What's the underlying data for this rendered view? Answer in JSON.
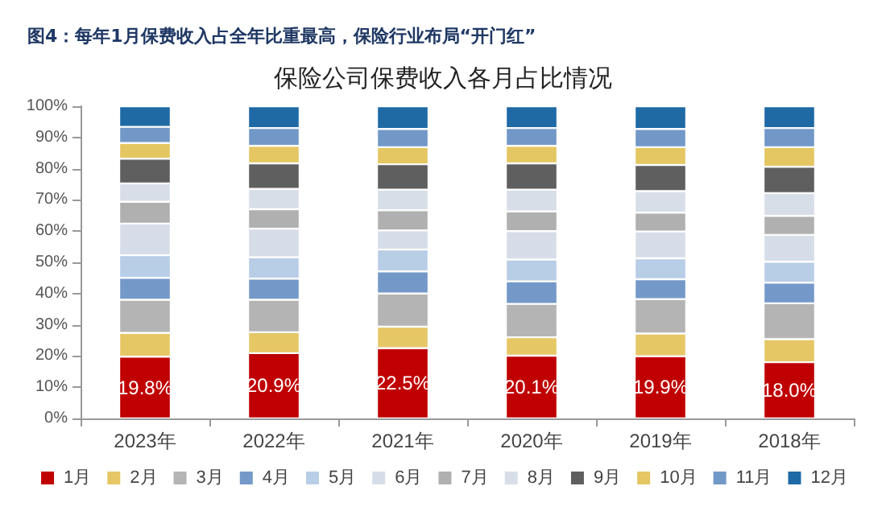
{
  "chart_data": {
    "type": "bar",
    "title": "图4：每年1月保费收入占全年比重最高，保险行业布局“开门红”",
    "subtitle": "保险公司保费收入各月占比情况",
    "categories": [
      "2023年",
      "2022年",
      "2021年",
      "2020年",
      "2019年",
      "2018年"
    ],
    "stacked": true,
    "ylim": [
      0,
      100
    ],
    "yticks": [
      {
        "value": 0,
        "label": "0%"
      },
      {
        "value": 10,
        "label": "10%"
      },
      {
        "value": 20,
        "label": "20%"
      },
      {
        "value": 30,
        "label": "30%"
      },
      {
        "value": 40,
        "label": "40%"
      },
      {
        "value": 50,
        "label": "50%"
      },
      {
        "value": 60,
        "label": "60%"
      },
      {
        "value": 70,
        "label": "70%"
      },
      {
        "value": 80,
        "label": "80%"
      },
      {
        "value": 90,
        "label": "90%"
      },
      {
        "value": 100,
        "label": "100%"
      }
    ],
    "grid": false,
    "legend": "bottom",
    "series": [
      {
        "name": "1月",
        "color": "#c00000",
        "values": [
          19.8,
          20.9,
          22.5,
          20.1,
          19.9,
          18.0
        ],
        "value_labels": [
          "19.8%",
          "20.9%",
          "22.5%",
          "20.1%",
          "19.9%",
          "18.0%"
        ]
      },
      {
        "name": "2月",
        "color": "#e6c766",
        "values": [
          7.6,
          6.7,
          6.9,
          5.9,
          7.3,
          7.4
        ]
      },
      {
        "name": "3月",
        "color": "#b4b4b4",
        "values": [
          10.6,
          10.4,
          10.6,
          10.7,
          11.0,
          11.5
        ]
      },
      {
        "name": "4月",
        "color": "#7499c9",
        "values": [
          7.0,
          6.8,
          7.1,
          7.2,
          6.4,
          6.6
        ]
      },
      {
        "name": "5月",
        "color": "#b8cde6",
        "values": [
          7.3,
          6.8,
          7.0,
          7.0,
          6.7,
          6.7
        ]
      },
      {
        "name": "6月",
        "color": "#d6dde8",
        "values": [
          10.1,
          9.2,
          6.1,
          9.1,
          8.6,
          8.6
        ]
      },
      {
        "name": "7月",
        "color": "#b0b0b0",
        "values": [
          7.0,
          6.2,
          6.5,
          6.3,
          6.0,
          6.1
        ]
      },
      {
        "name": "8月",
        "color": "#d8dee8",
        "values": [
          5.9,
          6.5,
          6.6,
          7.0,
          6.9,
          7.3
        ]
      },
      {
        "name": "9月",
        "color": "#5f5f5f",
        "values": [
          7.9,
          8.2,
          8.1,
          8.4,
          8.4,
          8.4
        ]
      },
      {
        "name": "10月",
        "color": "#e4c662",
        "values": [
          5.0,
          5.6,
          5.5,
          5.6,
          5.7,
          6.3
        ]
      },
      {
        "name": "11月",
        "color": "#7298c8",
        "values": [
          5.2,
          5.7,
          5.8,
          5.7,
          5.8,
          6.1
        ]
      },
      {
        "name": "12月",
        "color": "#1f6aa5",
        "values": [
          6.6,
          7.0,
          7.3,
          7.0,
          7.3,
          7.0
        ]
      }
    ]
  }
}
